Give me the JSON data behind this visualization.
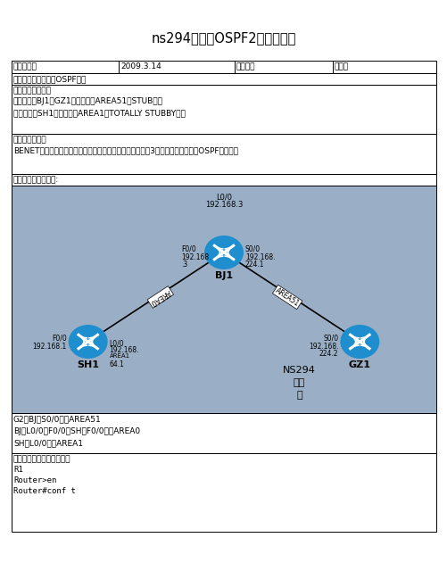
{
  "title": "ns294苏俊锋OSPF2的实验报告",
  "row1": [
    "实验时间：",
    "2009.3.14",
    "实验人：",
    "苏俊锋"
  ],
  "exp_name": "实验名称：多区域的OSPF配置",
  "task_header": "实验任务和目标：",
  "task_lines": [
    "配置路由器BJ1和GZ1所属的区域AREA51为STUB区域",
    "配置路由器SH1所属的区域AREA1为TOTALLY STUBBY区域"
  ],
  "env_header": "实验环境描述：",
  "env_line": "BENET公司总部位于北京，在上海、广州拥有分公司，现将3个地方的办公网络用OSPF连接起来",
  "topo_header": "实验拓扑及网络规划:",
  "bg_color": "#9aafc5",
  "router_color": "#1e8ecf",
  "notes": [
    "G2与BJ的S0/0属于AREA51",
    "BJ的L0/0、F0/0与SH的F0/0属于AREA0",
    "SH的L0/0属于AREA1"
  ],
  "op_header": "实验操作过程及配置说明：",
  "op_lines": [
    "R1",
    "Router>en",
    "Router#conf t"
  ],
  "white": "#ffffff",
  "black": "#000000",
  "ml": 13,
  "mr": 489
}
